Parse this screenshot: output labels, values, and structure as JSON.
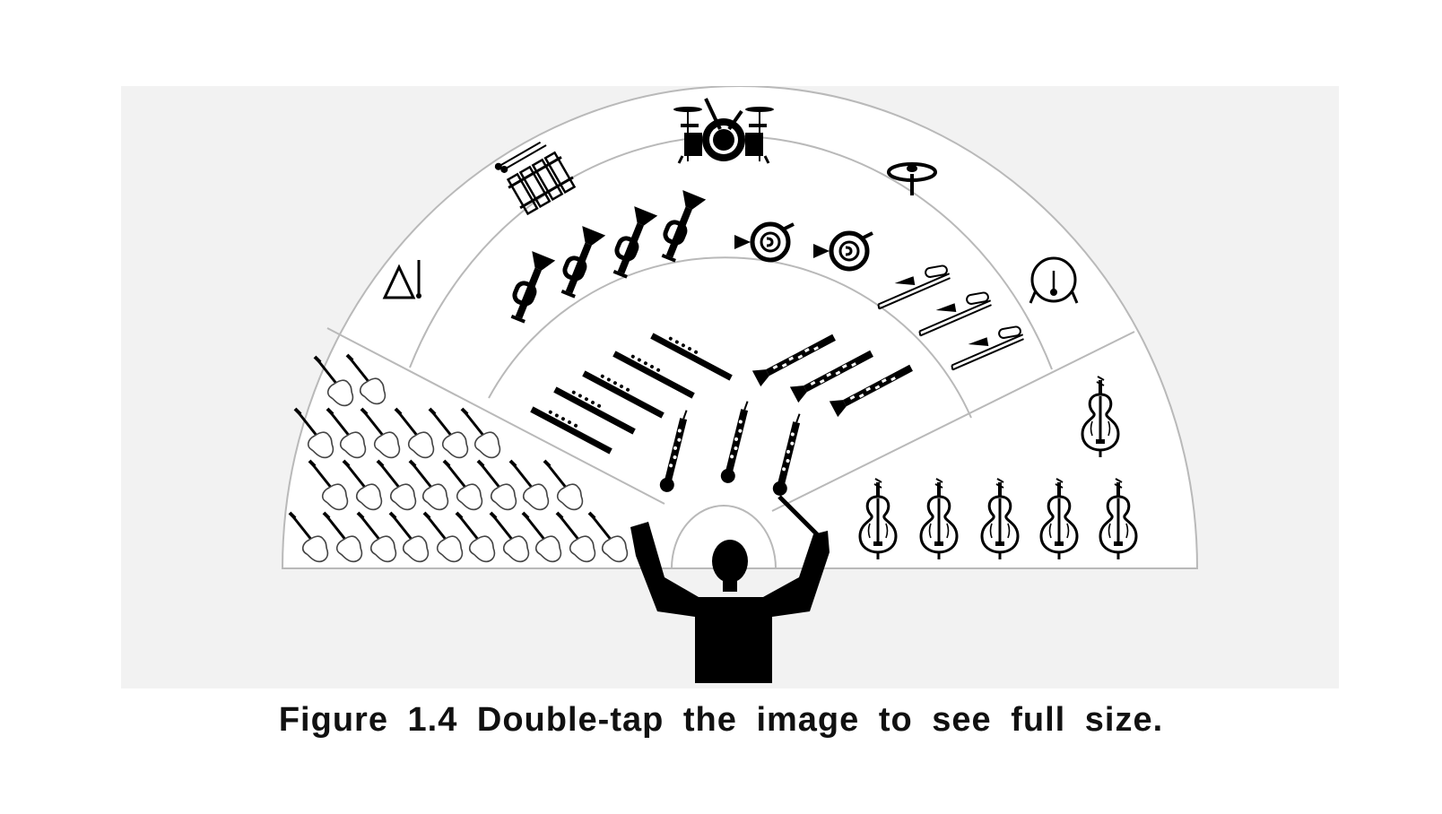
{
  "caption": {
    "label": "Figure 1.4",
    "text": "Double-tap the image to see full size."
  },
  "diagram": {
    "subject": "Orchestra seating layout",
    "colors": {
      "background": "#f2f2f2",
      "lines": "#b9b9b9",
      "ink": "#000000"
    },
    "sections": [
      {
        "name": "first-violins",
        "instrument": "violin-icon",
        "count": 26
      },
      {
        "name": "woodwind-flutes",
        "instrument": "flute-icon",
        "count": 5
      },
      {
        "name": "woodwind-oboes",
        "instrument": "oboe-icon",
        "count": 3
      },
      {
        "name": "woodwind-clarinets",
        "instrument": "clarinet-icon",
        "count": 3
      },
      {
        "name": "brass-trumpets",
        "instrument": "trumpet-icon",
        "count": 4
      },
      {
        "name": "brass-horns",
        "instrument": "french-horn-icon",
        "count": 2
      },
      {
        "name": "brass-trombones",
        "instrument": "trombone-icon",
        "count": 3
      },
      {
        "name": "percussion",
        "instrument": "drum-kit-icon",
        "count": 5
      },
      {
        "name": "cellos",
        "instrument": "cello-icon",
        "count": 6
      },
      {
        "name": "conductor",
        "instrument": "conductor-icon",
        "count": 1
      }
    ]
  }
}
